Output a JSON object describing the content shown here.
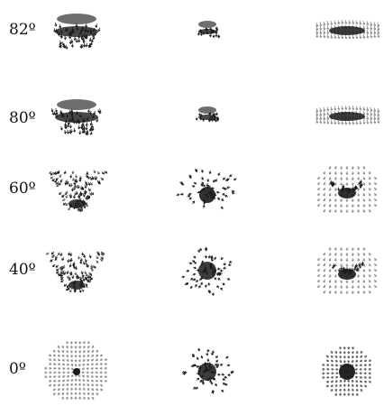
{
  "rows": [
    {
      "label": "82º",
      "views": [
        {
          "pattern": "curtain-compact",
          "density": 0.9
        },
        {
          "pattern": "curtain-small",
          "density": 0.9
        },
        {
          "pattern": "curtain-wide",
          "density": 0.9
        }
      ]
    },
    {
      "label": "80º",
      "views": [
        {
          "pattern": "curtain-compact",
          "density": 0.9
        },
        {
          "pattern": "curtain-small",
          "density": 0.9
        },
        {
          "pattern": "curtain-wide",
          "density": 0.9
        }
      ]
    },
    {
      "label": "60º",
      "views": [
        {
          "pattern": "v-cone",
          "density": 0.8
        },
        {
          "pattern": "sparse-cone",
          "density": 0.6
        },
        {
          "pattern": "grid-cone",
          "density": 0.8
        }
      ]
    },
    {
      "label": "40º",
      "views": [
        {
          "pattern": "v-cone",
          "density": 0.7
        },
        {
          "pattern": "sparse-ring",
          "density": 0.6
        },
        {
          "pattern": "grid-cone",
          "density": 0.7
        }
      ]
    },
    {
      "label": "0º",
      "views": [
        {
          "pattern": "radial-grid",
          "density": 0.7
        },
        {
          "pattern": "sparse-ring",
          "density": 0.6
        },
        {
          "pattern": "radial-dense",
          "density": 0.7
        }
      ]
    }
  ],
  "colors": {
    "ink": "#1a1a1a",
    "mid": "#555555",
    "light": "#8a8a8a",
    "background": "#ffffff"
  }
}
